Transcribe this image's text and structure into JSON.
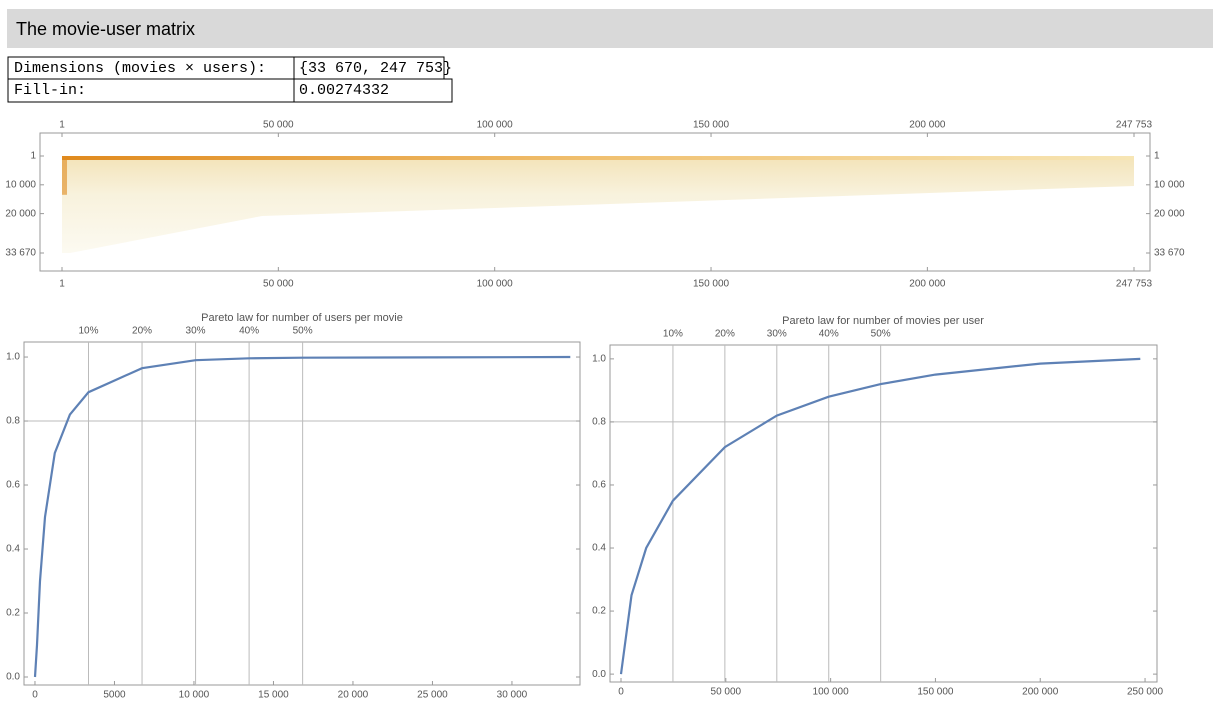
{
  "header": {
    "title": "The movie-user matrix"
  },
  "table": {
    "rows": [
      [
        "Dimensions (movies × users):",
        "{33 670, 247 753}"
      ],
      [
        "Fill-in:",
        "0.00274332"
      ]
    ]
  },
  "chart_data": [
    {
      "type": "matrix",
      "xlim": [
        -5084,
        251451
      ],
      "ylim": [
        -7982,
        39918
      ],
      "y_reversed": true,
      "xticks": [
        1,
        {
          "value": 50000,
          "label": "50 000"
        },
        {
          "value": 100000,
          "label": "100 000"
        },
        {
          "value": 150000,
          "label": "150 000"
        },
        {
          "value": 200000,
          "label": "200 000"
        },
        {
          "value": 247753,
          "label": "247 753"
        }
      ],
      "yticks": [
        1,
        {
          "value": 10000,
          "label": "10 000"
        },
        {
          "value": 20000,
          "label": "20 000"
        },
        {
          "value": 33670,
          "label": "33 670"
        }
      ],
      "color": "#e08a1e"
    },
    {
      "type": "line",
      "title": "Pareto law for number of users per movie",
      "color": "#5e81b5",
      "x": [
        0,
        125,
        315,
        630,
        1250,
        2200,
        3367,
        6734,
        10101,
        13468,
        16835,
        25000,
        33670
      ],
      "values": [
        0,
        0.1,
        0.3,
        0.5,
        0.7,
        0.82,
        0.89,
        0.965,
        0.99,
        0.996,
        0.998,
        0.999,
        1.0
      ],
      "xlim": [
        -690,
        34280
      ],
      "ylim": [
        -0.025,
        1.047
      ],
      "xticks": [
        0,
        5000,
        {
          "value": 10000,
          "label": "10 000"
        },
        {
          "value": 15000,
          "label": "15 000"
        },
        {
          "value": 20000,
          "label": "20 000"
        },
        {
          "value": 25000,
          "label": "25 000"
        },
        {
          "value": 30000,
          "label": "30 000"
        }
      ],
      "x2ticks": [
        {
          "value": 3367,
          "label": "10%"
        },
        {
          "value": 6734,
          "label": "20%"
        },
        {
          "value": 10101,
          "label": "30%"
        },
        {
          "value": 13468,
          "label": "40%"
        },
        {
          "value": 16835,
          "label": "50%"
        }
      ],
      "yticks": [
        {
          "value": 0,
          "label": "0.0"
        },
        {
          "value": 0.2,
          "label": "0.2"
        },
        {
          "value": 0.4,
          "label": "0.4"
        },
        {
          "value": 0.6,
          "label": "0.6"
        },
        {
          "value": 0.8,
          "label": "0.8"
        },
        {
          "value": 1,
          "label": "1.0"
        }
      ],
      "y_gridlines": [
        0.8
      ]
    },
    {
      "type": "line",
      "title": "Pareto law for number of movies per user",
      "color": "#5e81b5",
      "x": [
        0,
        5000,
        12000,
        24775,
        49550,
        74326,
        99101,
        123876,
        150000,
        200000,
        247753
      ],
      "values": [
        0,
        0.25,
        0.4,
        0.55,
        0.72,
        0.82,
        0.88,
        0.92,
        0.95,
        0.985,
        1.0
      ],
      "xlim": [
        -5250,
        255700
      ],
      "ylim": [
        -0.025,
        1.044
      ],
      "xticks": [
        0,
        {
          "value": 50000,
          "label": "50 000"
        },
        {
          "value": 100000,
          "label": "100 000"
        },
        {
          "value": 150000,
          "label": "150 000"
        },
        {
          "value": 200000,
          "label": "200 000"
        },
        {
          "value": 250000,
          "label": "250 000"
        }
      ],
      "x2ticks": [
        {
          "value": 24775,
          "label": "10%"
        },
        {
          "value": 49550,
          "label": "20%"
        },
        {
          "value": 74326,
          "label": "30%"
        },
        {
          "value": 99101,
          "label": "40%"
        },
        {
          "value": 123876,
          "label": "50%"
        }
      ],
      "yticks": [
        {
          "value": 0,
          "label": "0.0"
        },
        {
          "value": 0.2,
          "label": "0.2"
        },
        {
          "value": 0.4,
          "label": "0.4"
        },
        {
          "value": 0.6,
          "label": "0.6"
        },
        {
          "value": 0.8,
          "label": "0.8"
        },
        {
          "value": 1,
          "label": "1.0"
        }
      ],
      "y_gridlines": [
        0.8
      ]
    }
  ]
}
